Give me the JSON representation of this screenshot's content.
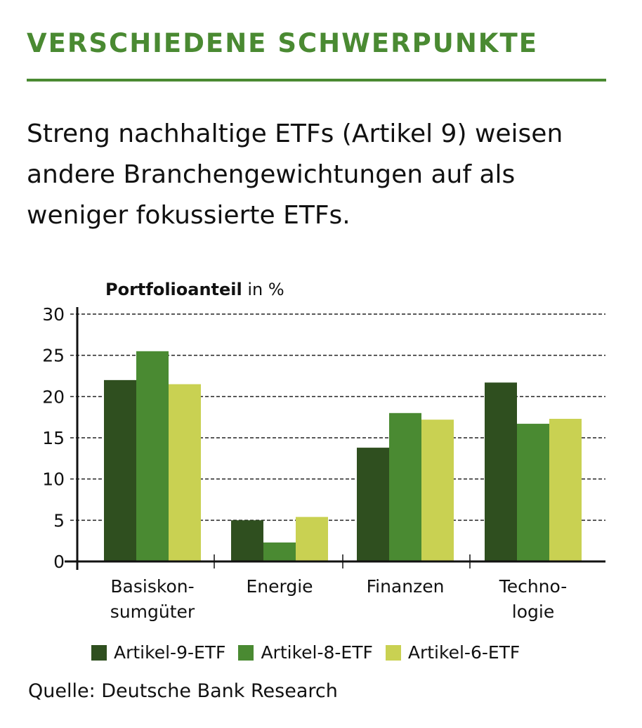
{
  "title": "VERSCHIEDENE SCHWERPUNKTE",
  "subtitle": "Streng nachhaltige ETFs (Artikel 9) weisen andere Branchengewichtungen auf als weniger fokussierte ETFs.",
  "source": "Quelle: Deutsche Bank Research",
  "colors": {
    "accent": "#4a8a32",
    "artikel9": "#2f4f1f",
    "artikel8": "#4a8a32",
    "artikel6": "#c9d152"
  },
  "chart_data": {
    "type": "bar",
    "ylabel_bold": "Portfolioanteil",
    "ylabel_rest": " in %",
    "ylim": [
      0,
      30
    ],
    "yticks": [
      "0",
      "5",
      "10",
      "15",
      "20",
      "25",
      "30"
    ],
    "grid": true,
    "legend_position": "bottom",
    "categories": [
      [
        "Basiskon-",
        "sumgüter"
      ],
      [
        "Energie"
      ],
      [
        "Finanzen"
      ],
      [
        "Techno-",
        "logie"
      ]
    ],
    "series": [
      {
        "name": "Artikel-9-ETF",
        "color": "#2f4f1f",
        "values": [
          22.0,
          5.0,
          13.8,
          21.7
        ]
      },
      {
        "name": "Artikel-8-ETF",
        "color": "#4a8a32",
        "values": [
          25.5,
          2.3,
          18.0,
          16.7
        ]
      },
      {
        "name": "Artikel-6-ETF",
        "color": "#c9d152",
        "values": [
          21.5,
          5.4,
          17.2,
          17.3
        ]
      }
    ]
  }
}
